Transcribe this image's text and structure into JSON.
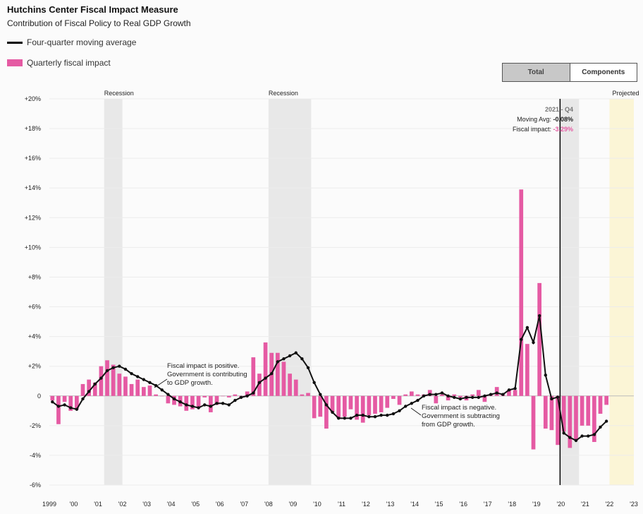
{
  "header": {
    "title": "Hutchins Center Fiscal Impact Measure",
    "subtitle": "Contribution of Fiscal Policy to Real GDP Growth"
  },
  "legend": {
    "line_label": "Four-quarter moving average",
    "bar_label": "Quarterly fiscal impact"
  },
  "toggle": {
    "total": "Total",
    "components": "Components",
    "selected": "Total"
  },
  "tooltip": {
    "period": "2021 - Q4",
    "avg_label": "Moving Avg:",
    "avg_value": "-0.08%",
    "fi_label": "Fiscal impact:",
    "fi_value": "-3.29%"
  },
  "annotations": {
    "positive": [
      "Fiscal impact is positive.",
      "Government is contributing",
      "to GDP growth."
    ],
    "negative": [
      "Fiscal impact is negative.",
      "Government is subtracting",
      "from GDP growth."
    ]
  },
  "colors": {
    "bar": "#e55aa3",
    "line": "#111111",
    "recession": "#e8e8e8",
    "projected": "#fbf5d6",
    "tooltip_fi": "#e55aa3"
  },
  "chart_data": {
    "type": "bar",
    "ylim": [
      -6,
      20
    ],
    "y_ticks": [
      "-6%",
      "-4%",
      "-2%",
      "0",
      "+2%",
      "+4%",
      "+6%",
      "+8%",
      "+10%",
      "+12%",
      "+14%",
      "+16%",
      "+18%",
      "+20%"
    ],
    "x_tick_labels": [
      "1999",
      "'00",
      "'01",
      "'02",
      "'03",
      "'04",
      "'05",
      "'06",
      "'07",
      "'08",
      "'09",
      "'10",
      "'11",
      "'12",
      "'13",
      "'14",
      "'15",
      "'16",
      "'17",
      "'18",
      "'19",
      "'20",
      "'21",
      "'22",
      "'23"
    ],
    "x_start_year": 1999,
    "x_end_year": 2023,
    "recessions": [
      {
        "label": "Recession",
        "start": 2001.25,
        "end": 2002.0
      },
      {
        "label": "Recession",
        "start": 2008.0,
        "end": 2009.75
      },
      {
        "label": "",
        "start": 2020.0,
        "end": 2020.75
      }
    ],
    "projected": {
      "label": "Projected",
      "start": 2022.0,
      "end": 2024.0
    },
    "series": [
      {
        "name": "Quarterly fiscal impact",
        "type": "bar",
        "values": [
          -0.3,
          -1.9,
          -0.4,
          -1.0,
          -0.9,
          0.8,
          1.1,
          0.9,
          2.0,
          2.4,
          2.1,
          1.5,
          1.3,
          0.8,
          1.1,
          0.6,
          0.7,
          0.1,
          0.0,
          -0.5,
          -0.6,
          -0.7,
          -1.0,
          -0.9,
          -0.8,
          -0.1,
          -1.1,
          -0.6,
          0.0,
          -0.1,
          0.1,
          -0.1,
          0.3,
          2.6,
          1.5,
          3.6,
          2.9,
          2.9,
          2.3,
          1.5,
          1.1,
          0.1,
          0.2,
          -1.5,
          -1.4,
          -2.2,
          -1.1,
          -1.5,
          -1.4,
          -0.9,
          -1.6,
          -1.8,
          -1.3,
          -1.2,
          -1.1,
          -0.8,
          -0.2,
          -0.6,
          0.1,
          0.3,
          0.1,
          0.1,
          0.4,
          -0.5,
          0.1,
          -0.3,
          0.1,
          -0.1,
          -0.3,
          0.1,
          0.4,
          -0.4,
          0.1,
          0.6,
          0.1,
          0.4,
          0.4,
          13.9,
          3.5,
          -3.6,
          7.6,
          -2.2,
          -2.3,
          -3.3,
          -2.4,
          -3.5,
          -3.0,
          -2.0,
          -2.0,
          -3.1,
          -1.2,
          -0.6
        ]
      },
      {
        "name": "Four-quarter moving average",
        "type": "line",
        "values": [
          -0.4,
          -0.7,
          -0.6,
          -0.8,
          -0.9,
          -0.2,
          0.3,
          0.8,
          1.2,
          1.7,
          1.9,
          2.0,
          1.8,
          1.5,
          1.3,
          1.1,
          0.9,
          0.7,
          0.4,
          0.1,
          -0.2,
          -0.4,
          -0.6,
          -0.7,
          -0.8,
          -0.6,
          -0.7,
          -0.5,
          -0.5,
          -0.6,
          -0.3,
          -0.1,
          0.0,
          0.2,
          0.9,
          1.2,
          1.5,
          2.3,
          2.5,
          2.7,
          2.9,
          2.5,
          1.9,
          0.9,
          0.1,
          -0.6,
          -1.1,
          -1.5,
          -1.5,
          -1.5,
          -1.3,
          -1.3,
          -1.4,
          -1.4,
          -1.3,
          -1.3,
          -1.2,
          -1.0,
          -0.7,
          -0.5,
          -0.3,
          0.0,
          0.1,
          0.1,
          0.2,
          0.0,
          -0.1,
          -0.2,
          -0.1,
          -0.1,
          -0.1,
          0.0,
          0.1,
          0.2,
          0.1,
          0.4,
          0.5,
          3.8,
          4.6,
          3.6,
          5.4,
          1.4,
          -0.2,
          -0.08,
          -2.5,
          -2.8,
          -3.0,
          -2.7,
          -2.7,
          -2.6,
          -2.1,
          -1.7
        ]
      }
    ]
  }
}
